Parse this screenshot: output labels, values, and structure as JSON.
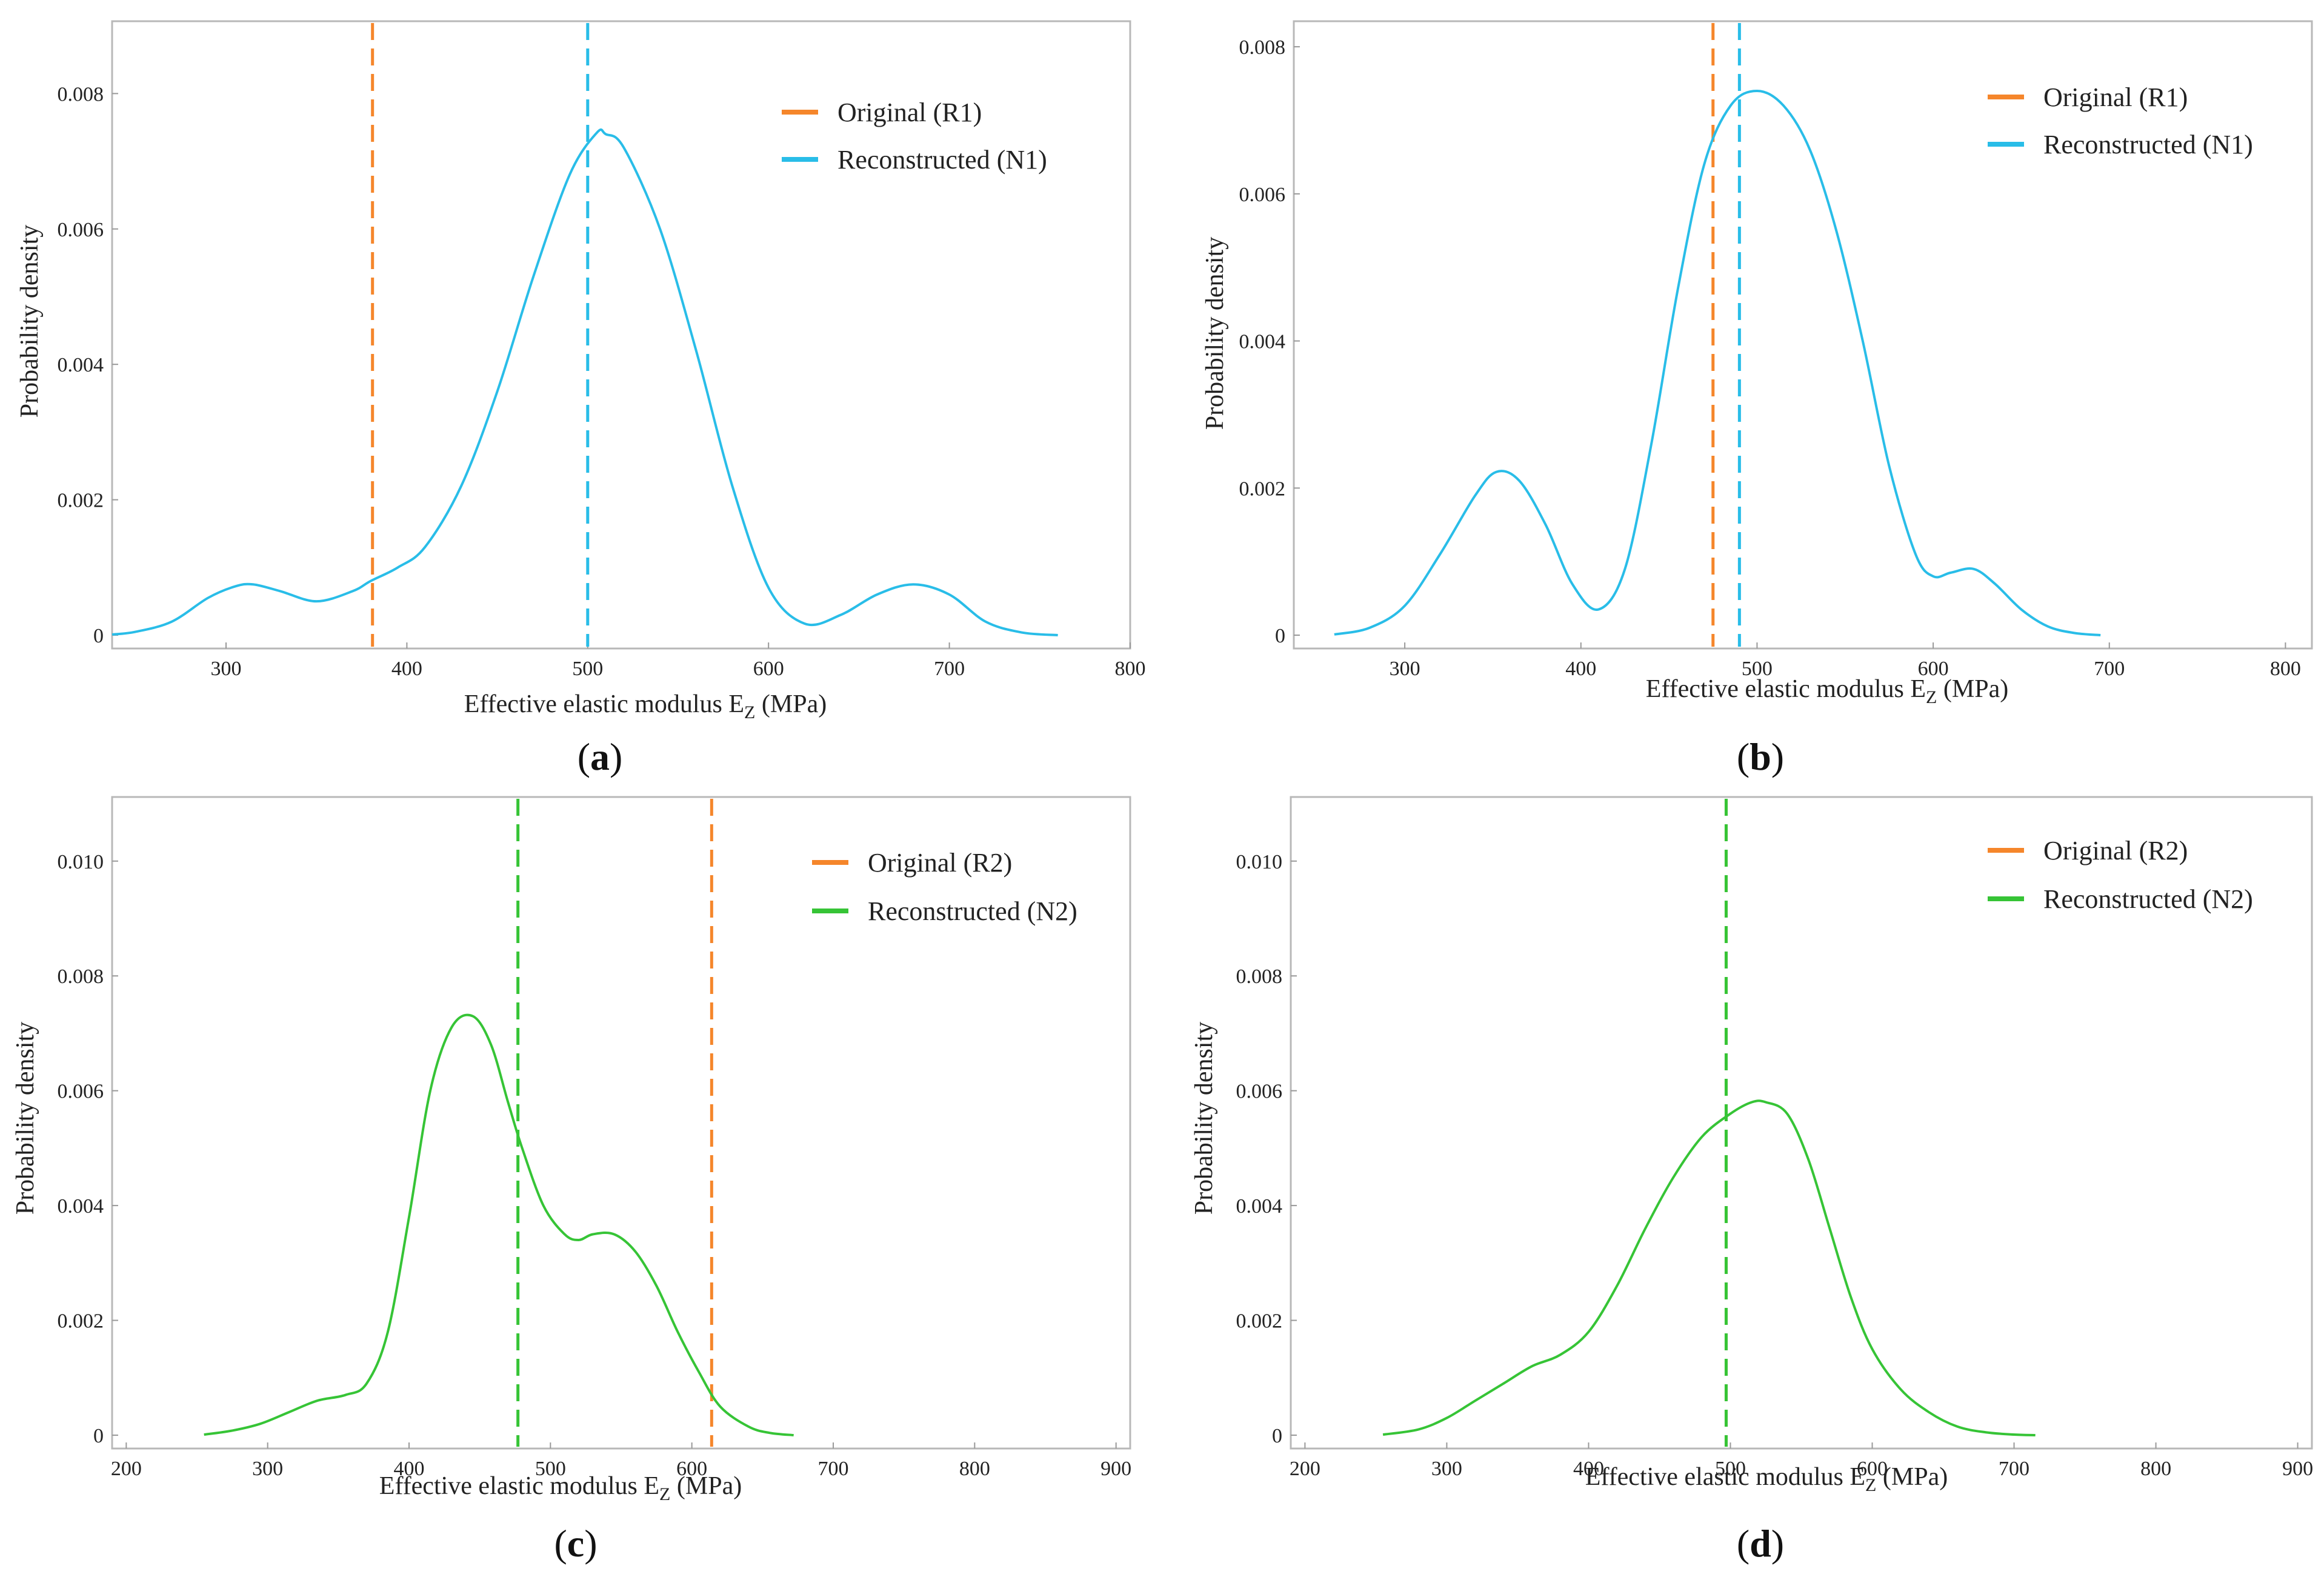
{
  "colors": {
    "original": "#f5862b",
    "blue": "#29bde8",
    "green": "#36c436",
    "frame": "#b8b8b8",
    "text": "#222222"
  },
  "chart_data": [
    {
      "panel": "a",
      "type": "line",
      "xlabel": "Effective elastic modulus E",
      "xlabel_sub": "Z",
      "xlabel_unit": " (MPa)",
      "ylabel": "Probability density",
      "xlim": [
        237,
        800
      ],
      "ylim": [
        0,
        0.0088
      ],
      "xticks": [
        300,
        400,
        500,
        600,
        700,
        800
      ],
      "yticks": [
        0,
        0.002,
        0.004,
        0.006,
        0.008
      ],
      "ytick_labels": [
        "0",
        "0.002",
        "0.004",
        "0.006",
        "0.008"
      ],
      "series_color": "blue",
      "series": [
        {
          "name": "Reconstructed (N1)",
          "x": [
            237,
            250,
            270,
            290,
            305,
            315,
            330,
            350,
            370,
            380,
            395,
            410,
            430,
            450,
            470,
            490,
            505,
            510,
            520,
            540,
            560,
            580,
            600,
            620,
            640,
            660,
            680,
            700,
            720,
            740,
            760
          ],
          "y": [
            1e-05,
            5e-05,
            0.0002,
            0.00055,
            0.00072,
            0.00075,
            0.00065,
            0.0005,
            0.00065,
            0.0008,
            0.001,
            0.0013,
            0.0022,
            0.0036,
            0.0053,
            0.0068,
            0.00742,
            0.0074,
            0.0072,
            0.006,
            0.0042,
            0.0022,
            0.0007,
            0.00017,
            0.0003,
            0.0006,
            0.00075,
            0.0006,
            0.0002,
            4e-05,
            0.0
          ]
        }
      ],
      "vlines": [
        {
          "x": 381,
          "color": "original"
        },
        {
          "x": 500,
          "color": "blue"
        }
      ],
      "legend": [
        "Original (R1)",
        "Reconstructed (N1)"
      ]
    },
    {
      "panel": "b",
      "type": "line",
      "xlabel": "Effective elastic modulus E",
      "xlabel_sub": "Z",
      "xlabel_unit": " (MPa)",
      "ylabel": "Probability density",
      "xlim": [
        237,
        815
      ],
      "ylim": [
        0,
        0.0081
      ],
      "xticks": [
        300,
        400,
        500,
        600,
        700,
        800
      ],
      "yticks": [
        0,
        0.002,
        0.004,
        0.006,
        0.008
      ],
      "ytick_labels": [
        "0",
        "0.002",
        "0.004",
        "0.006",
        "0.008"
      ],
      "series_color": "blue",
      "series": [
        {
          "name": "Reconstructed (N1)",
          "x": [
            260,
            280,
            300,
            320,
            340,
            352,
            365,
            380,
            395,
            410,
            425,
            440,
            455,
            470,
            485,
            500,
            515,
            530,
            545,
            560,
            575,
            590,
            600,
            610,
            623,
            635,
            650,
            665,
            680,
            695
          ],
          "y": [
            1e-05,
            0.0001,
            0.0004,
            0.0011,
            0.0019,
            0.00222,
            0.0021,
            0.0015,
            0.0007,
            0.00035,
            0.0009,
            0.0026,
            0.0047,
            0.0064,
            0.0072,
            0.0074,
            0.0072,
            0.0066,
            0.0055,
            0.004,
            0.0023,
            0.0011,
            0.0008,
            0.00085,
            0.0009,
            0.0007,
            0.00035,
            0.00012,
            3e-05,
            0.0
          ]
        }
      ],
      "vlines": [
        {
          "x": 475,
          "color": "original"
        },
        {
          "x": 490,
          "color": "blue"
        }
      ],
      "legend": [
        "Original (R1)",
        "Reconstructed (N1)"
      ]
    },
    {
      "panel": "c",
      "type": "line",
      "xlabel": "Effective elastic modulus E",
      "xlabel_sub": "Z",
      "xlabel_unit": " (MPa)",
      "ylabel": "Probability density",
      "xlim": [
        190,
        910
      ],
      "ylim": [
        0,
        0.0108
      ],
      "xticks": [
        200,
        300,
        400,
        500,
        600,
        700,
        800,
        900
      ],
      "yticks": [
        0,
        0.002,
        0.004,
        0.006,
        0.008,
        0.01
      ],
      "ytick_labels": [
        "0",
        "0.002",
        "0.004",
        "0.006",
        "0.008",
        "0.010"
      ],
      "series_color": "green",
      "series": [
        {
          "name": "Reconstructed (N2)",
          "x": [
            255,
            275,
            295,
            315,
            335,
            355,
            370,
            385,
            400,
            415,
            430,
            445,
            458,
            470,
            480,
            495,
            510,
            520,
            530,
            545,
            560,
            575,
            590,
            605,
            620,
            640,
            655,
            672
          ],
          "y": [
            1e-05,
            8e-05,
            0.0002,
            0.0004,
            0.0006,
            0.0007,
            0.0009,
            0.0018,
            0.0038,
            0.006,
            0.0071,
            0.0073,
            0.0068,
            0.0058,
            0.005,
            0.004,
            0.0035,
            0.0034,
            0.0035,
            0.0035,
            0.0032,
            0.0026,
            0.0018,
            0.0011,
            0.0005,
            0.00015,
            4e-05,
            0.0
          ]
        }
      ],
      "vlines": [
        {
          "x": 477,
          "color": "green"
        },
        {
          "x": 614,
          "color": "original"
        }
      ],
      "legend": [
        "Original (R2)",
        "Reconstructed (N2)"
      ]
    },
    {
      "panel": "d",
      "type": "line",
      "xlabel": "Effective elastic modulus E",
      "xlabel_sub": "Z",
      "xlabel_unit": " (MPa)",
      "ylabel": "Probability density",
      "xlim": [
        190,
        910
      ],
      "ylim": [
        0,
        0.0108
      ],
      "xticks": [
        200,
        300,
        400,
        500,
        600,
        700,
        800,
        900
      ],
      "yticks": [
        0,
        0.002,
        0.004,
        0.006,
        0.008,
        0.01
      ],
      "ytick_labels": [
        "0",
        "0.002",
        "0.004",
        "0.006",
        "0.008",
        "0.010"
      ],
      "series_color": "green",
      "series": [
        {
          "name": "Reconstructed (N2)",
          "x": [
            255,
            280,
            300,
            320,
            340,
            360,
            380,
            400,
            420,
            440,
            460,
            480,
            500,
            515,
            525,
            540,
            555,
            570,
            585,
            600,
            620,
            640,
            660,
            680,
            700,
            715
          ],
          "y": [
            1e-05,
            0.0001,
            0.0003,
            0.0006,
            0.0009,
            0.0012,
            0.0014,
            0.0018,
            0.0026,
            0.0036,
            0.0045,
            0.0052,
            0.0056,
            0.0058,
            0.0058,
            0.0056,
            0.0048,
            0.0036,
            0.0024,
            0.0015,
            0.0008,
            0.0004,
            0.00015,
            5e-05,
            1e-05,
            0.0
          ]
        }
      ],
      "vlines": [
        {
          "x": 497,
          "color": "original"
        },
        {
          "x": 497,
          "color": "green"
        }
      ],
      "legend": [
        "Original (R2)",
        "Reconstructed (N2)"
      ]
    }
  ],
  "panel_labels": [
    "a",
    "b",
    "c",
    "d"
  ]
}
